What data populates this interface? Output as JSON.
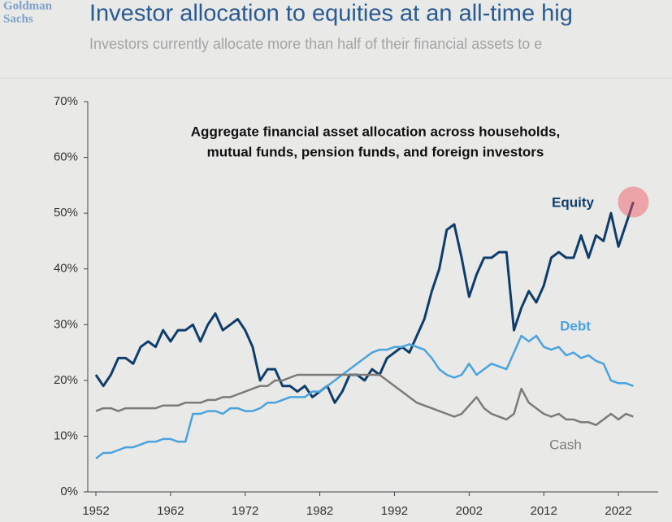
{
  "logo": [
    "Goldman",
    "Sachs"
  ],
  "chart_data": {
    "type": "line",
    "title": "Investor allocation to equities at an all-time hig",
    "subtitle": "Investors currently allocate more than half of their financial assets to e",
    "annotation": [
      "Aggregate financial asset allocation across households,",
      "mutual funds, pension funds, and foreign investors"
    ],
    "x": [
      1952,
      1953,
      1954,
      1955,
      1956,
      1957,
      1958,
      1959,
      1960,
      1961,
      1962,
      1963,
      1964,
      1965,
      1966,
      1967,
      1968,
      1969,
      1970,
      1971,
      1972,
      1973,
      1974,
      1975,
      1976,
      1977,
      1978,
      1979,
      1980,
      1981,
      1982,
      1983,
      1984,
      1985,
      1986,
      1987,
      1988,
      1989,
      1990,
      1991,
      1992,
      1993,
      1994,
      1995,
      1996,
      1997,
      1998,
      1999,
      2000,
      2001,
      2002,
      2003,
      2004,
      2005,
      2006,
      2007,
      2008,
      2009,
      2010,
      2011,
      2012,
      2013,
      2014,
      2015,
      2016,
      2017,
      2018,
      2019,
      2020,
      2021,
      2022,
      2023,
      2024
    ],
    "series": [
      {
        "name": "Equity",
        "color": "#0f3d6b",
        "values": [
          21,
          19,
          21,
          24,
          24,
          23,
          26,
          27,
          26,
          29,
          27,
          29,
          29,
          30,
          27,
          30,
          32,
          29,
          30,
          31,
          29,
          26,
          20,
          22,
          22,
          19,
          19,
          18,
          19,
          17,
          18,
          19,
          16,
          18,
          21,
          21,
          20,
          22,
          21,
          24,
          25,
          26,
          25,
          28,
          31,
          36,
          40,
          47,
          48,
          42,
          35,
          39,
          42,
          42,
          43,
          43,
          29,
          33,
          36,
          34,
          37,
          42,
          43,
          42,
          42,
          46,
          42,
          46,
          45,
          50,
          44,
          48,
          52
        ]
      },
      {
        "name": "Debt",
        "color": "#4aa3df",
        "values": [
          6,
          7,
          7,
          7.5,
          8,
          8,
          8.5,
          9,
          9,
          9.5,
          9.5,
          9,
          9,
          14,
          14,
          14.5,
          14.5,
          14,
          15,
          15,
          14.5,
          14.5,
          15,
          16,
          16,
          16.5,
          17,
          17,
          17,
          18,
          18,
          19,
          20,
          21,
          22,
          23,
          24,
          25,
          25.5,
          25.5,
          26,
          26,
          26.5,
          26,
          25.5,
          24,
          22,
          21,
          20.5,
          21,
          23,
          21,
          22,
          23,
          22.5,
          22,
          25,
          28,
          27,
          28,
          26,
          25.5,
          26,
          24.5,
          25,
          24,
          24.5,
          23.5,
          23,
          20,
          19.5,
          19.5,
          19
        ]
      },
      {
        "name": "Cash",
        "color": "#7b7b7b",
        "values": [
          14.5,
          15,
          15,
          14.5,
          15,
          15,
          15,
          15,
          15,
          15.5,
          15.5,
          15.5,
          16,
          16,
          16,
          16.5,
          16.5,
          17,
          17,
          17.5,
          18,
          18.5,
          19,
          19,
          20,
          20,
          20.5,
          21,
          21,
          21,
          21,
          21,
          21,
          21,
          21,
          21,
          21,
          21,
          21,
          20,
          19,
          18,
          17,
          16,
          15.5,
          15,
          14.5,
          14,
          13.5,
          14,
          15.5,
          17,
          15,
          14,
          13.5,
          13,
          14,
          18.5,
          16,
          15,
          14,
          13.5,
          14,
          13,
          13,
          12.5,
          12.5,
          12,
          13,
          14,
          13,
          14,
          13.5
        ]
      }
    ],
    "xlim": [
      1952,
      2027
    ],
    "xticks": [
      1952,
      1962,
      1972,
      1982,
      1992,
      2002,
      2012,
      2022
    ],
    "ylim": [
      0,
      70
    ],
    "yticks": [
      {
        "value": 0,
        "label": "0%"
      },
      {
        "value": 10,
        "label": "10%"
      },
      {
        "value": 20,
        "label": "20%"
      },
      {
        "value": 30,
        "label": "30%"
      },
      {
        "value": 40,
        "label": "40%"
      },
      {
        "value": 50,
        "label": "50%"
      },
      {
        "value": 60,
        "label": "60%"
      },
      {
        "value": 70,
        "label": "70%"
      }
    ]
  }
}
